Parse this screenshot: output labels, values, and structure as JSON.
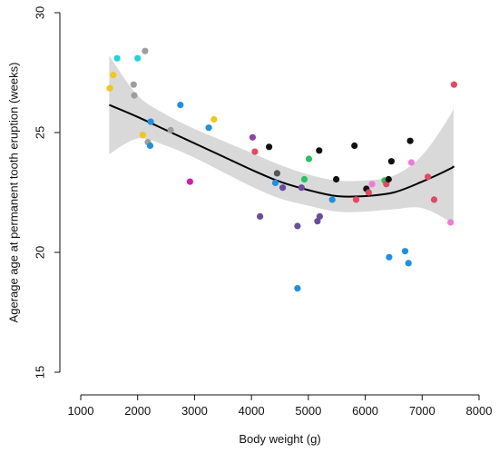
{
  "chart_data": {
    "type": "scatter",
    "title": "",
    "xlabel": "Body weight (g)",
    "ylabel": "Agerage age at permanent tooth eruption (weeks)",
    "xlim": [
      1000,
      8000
    ],
    "ylim": [
      15,
      30
    ],
    "x_ticks": [
      "1000",
      "2000",
      "3000",
      "4000",
      "5000",
      "6000",
      "7000",
      "8000"
    ],
    "y_ticks": [
      "15",
      "20",
      "25",
      "30"
    ],
    "grid": false,
    "points": [
      {
        "x": 1510,
        "y": 26.85,
        "color": "#f5c518"
      },
      {
        "x": 1570,
        "y": 27.4,
        "color": "#f5c518"
      },
      {
        "x": 1640,
        "y": 28.1,
        "color": "#22d3dd"
      },
      {
        "x": 1930,
        "y": 27.0,
        "color": "#9e9e9e"
      },
      {
        "x": 1940,
        "y": 26.55,
        "color": "#9e9e9e"
      },
      {
        "x": 2000,
        "y": 28.1,
        "color": "#22d3dd"
      },
      {
        "x": 2130,
        "y": 28.4,
        "color": "#9e9e9e"
      },
      {
        "x": 2090,
        "y": 24.9,
        "color": "#f5c518"
      },
      {
        "x": 2180,
        "y": 24.6,
        "color": "#9e9e9e"
      },
      {
        "x": 2230,
        "y": 25.45,
        "color": "#1e90e0"
      },
      {
        "x": 2220,
        "y": 24.45,
        "color": "#1e90e0"
      },
      {
        "x": 2580,
        "y": 25.1,
        "color": "#9e9e9e"
      },
      {
        "x": 2750,
        "y": 26.15,
        "color": "#1e90e0"
      },
      {
        "x": 2920,
        "y": 22.95,
        "color": "#d61fa6"
      },
      {
        "x": 3250,
        "y": 25.2,
        "color": "#1e90e0"
      },
      {
        "x": 3340,
        "y": 25.55,
        "color": "#f5c518"
      },
      {
        "x": 4020,
        "y": 24.8,
        "color": "#8e44ad"
      },
      {
        "x": 4060,
        "y": 24.2,
        "color": "#e8475f"
      },
      {
        "x": 4150,
        "y": 21.5,
        "color": "#6a4c9c"
      },
      {
        "x": 4310,
        "y": 24.4,
        "color": "#111111"
      },
      {
        "x": 4420,
        "y": 22.9,
        "color": "#1e90e0"
      },
      {
        "x": 4450,
        "y": 23.3,
        "color": "#555555"
      },
      {
        "x": 4550,
        "y": 22.7,
        "color": "#6a4c9c"
      },
      {
        "x": 4810,
        "y": 21.1,
        "color": "#6a4c9c"
      },
      {
        "x": 4810,
        "y": 18.5,
        "color": "#1e90e0"
      },
      {
        "x": 4880,
        "y": 22.7,
        "color": "#6a4c9c"
      },
      {
        "x": 4930,
        "y": 23.05,
        "color": "#22c55e"
      },
      {
        "x": 5010,
        "y": 23.9,
        "color": "#22c55e"
      },
      {
        "x": 5160,
        "y": 21.3,
        "color": "#6a4c9c"
      },
      {
        "x": 5190,
        "y": 24.25,
        "color": "#111111"
      },
      {
        "x": 5200,
        "y": 21.5,
        "color": "#6a4c9c"
      },
      {
        "x": 5420,
        "y": 22.2,
        "color": "#1e90e0"
      },
      {
        "x": 5490,
        "y": 23.05,
        "color": "#111111"
      },
      {
        "x": 5810,
        "y": 24.45,
        "color": "#111111"
      },
      {
        "x": 5840,
        "y": 22.2,
        "color": "#e8475f"
      },
      {
        "x": 6020,
        "y": 22.65,
        "color": "#111111"
      },
      {
        "x": 6060,
        "y": 22.5,
        "color": "#e8475f"
      },
      {
        "x": 6120,
        "y": 22.85,
        "color": "#f07ad8"
      },
      {
        "x": 6340,
        "y": 23.0,
        "color": "#22c55e"
      },
      {
        "x": 6370,
        "y": 22.85,
        "color": "#e8475f"
      },
      {
        "x": 6410,
        "y": 23.05,
        "color": "#111111"
      },
      {
        "x": 6420,
        "y": 19.8,
        "color": "#1e90e0"
      },
      {
        "x": 6460,
        "y": 23.8,
        "color": "#111111"
      },
      {
        "x": 6700,
        "y": 20.05,
        "color": "#1e90e0"
      },
      {
        "x": 6760,
        "y": 19.55,
        "color": "#1e90e0"
      },
      {
        "x": 6790,
        "y": 24.65,
        "color": "#111111"
      },
      {
        "x": 6810,
        "y": 23.75,
        "color": "#f07ad8"
      },
      {
        "x": 7100,
        "y": 23.15,
        "color": "#e8475f"
      },
      {
        "x": 7210,
        "y": 22.2,
        "color": "#e8475f"
      },
      {
        "x": 7500,
        "y": 21.25,
        "color": "#f07ad8"
      },
      {
        "x": 7560,
        "y": 27.0,
        "color": "#e8475f"
      }
    ],
    "trend": {
      "type": "smooth",
      "color": "#000000",
      "band_color": "#d9d9d9",
      "x": [
        1500,
        2000,
        2500,
        3000,
        3500,
        4000,
        4500,
        5000,
        5500,
        6000,
        6500,
        7000,
        7500,
        7550
      ],
      "y": [
        26.15,
        25.65,
        25.1,
        24.55,
        24.0,
        23.45,
        22.95,
        22.6,
        22.35,
        22.35,
        22.5,
        22.95,
        23.5,
        23.6
      ],
      "lower": [
        24.1,
        24.75,
        24.45,
        23.95,
        23.35,
        22.75,
        22.25,
        21.95,
        21.7,
        21.7,
        21.8,
        21.85,
        21.25,
        20.9
      ],
      "upper": [
        28.2,
        26.55,
        25.75,
        25.15,
        24.65,
        24.15,
        23.65,
        23.25,
        23.0,
        23.0,
        23.2,
        24.05,
        25.75,
        26.3
      ]
    }
  }
}
